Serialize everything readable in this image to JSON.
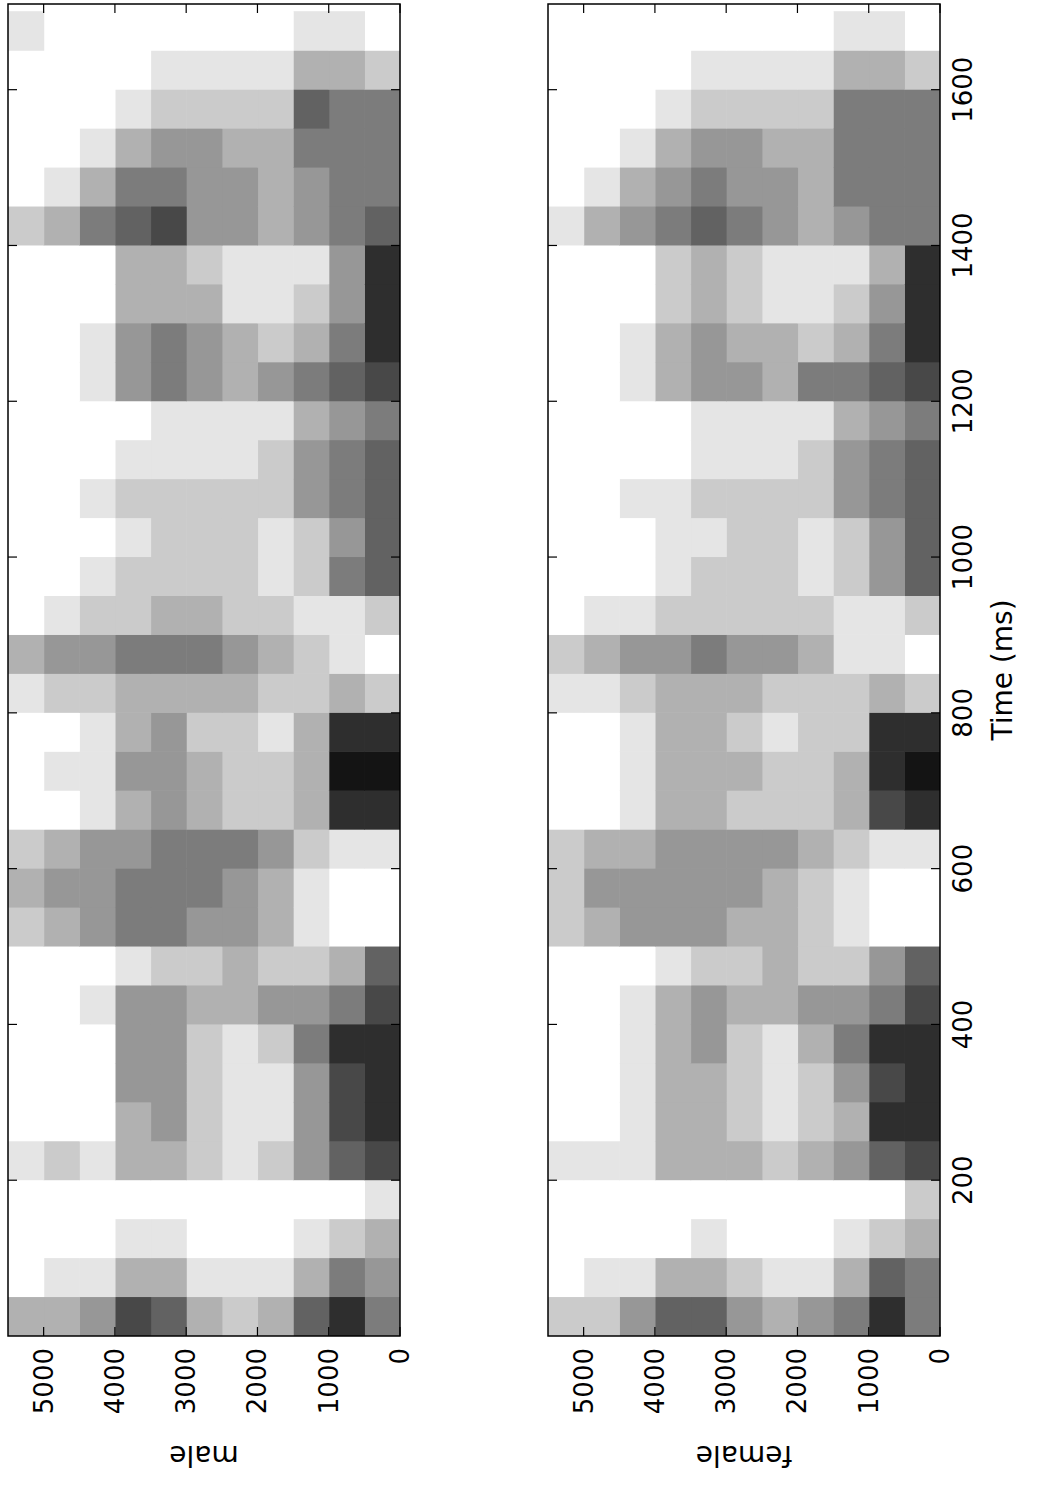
{
  "chart_data": [
    {
      "type": "heatmap",
      "ylabel": "male",
      "tick_labels": "y",
      "color": "#141414",
      "xlim": [
        0,
        1710
      ],
      "ylim": [
        0,
        5500
      ],
      "xticks": [
        200,
        400,
        600,
        800,
        1000,
        1200,
        1400,
        1600
      ],
      "yticks": [
        0,
        1000,
        2000,
        3000,
        4000,
        5000
      ],
      "color_range": [
        0,
        9
      ],
      "time_bins": [
        0,
        50,
        100,
        150,
        200,
        250,
        300,
        350,
        400,
        450,
        500,
        550,
        600,
        650,
        700,
        750,
        800,
        850,
        900,
        950,
        1000,
        1050,
        1100,
        1150,
        1200,
        1250,
        1300,
        1350,
        1400,
        1450,
        1500,
        1550,
        1600,
        1650,
        1700
      ],
      "freq_bins": [
        0,
        500,
        1000,
        1500,
        2000,
        2500,
        3000,
        3500,
        4000,
        4500,
        5000,
        5500
      ],
      "cells": [
        [
          5,
          8,
          6,
          3,
          2,
          3,
          6,
          7,
          4,
          3,
          3
        ],
        [
          4,
          5,
          3,
          1,
          1,
          1,
          3,
          3,
          1,
          1,
          0
        ],
        [
          3,
          2,
          1,
          0,
          0,
          0,
          1,
          1,
          0,
          0,
          0
        ],
        [
          1,
          0,
          0,
          0,
          0,
          0,
          0,
          0,
          0,
          0,
          0
        ],
        [
          7,
          6,
          4,
          2,
          1,
          2,
          3,
          3,
          1,
          2,
          1
        ],
        [
          8,
          7,
          4,
          1,
          1,
          2,
          4,
          3,
          0,
          0,
          0
        ],
        [
          8,
          7,
          4,
          1,
          1,
          2,
          4,
          4,
          0,
          0,
          0
        ],
        [
          8,
          8,
          5,
          2,
          1,
          2,
          4,
          4,
          0,
          0,
          0
        ],
        [
          7,
          5,
          4,
          4,
          3,
          3,
          4,
          4,
          1,
          0,
          0
        ],
        [
          6,
          3,
          2,
          2,
          3,
          2,
          2,
          1,
          0,
          0,
          0
        ],
        [
          0,
          0,
          1,
          3,
          4,
          4,
          5,
          5,
          4,
          3,
          2
        ],
        [
          0,
          0,
          1,
          3,
          4,
          5,
          5,
          5,
          4,
          4,
          3
        ],
        [
          1,
          1,
          2,
          4,
          5,
          5,
          5,
          4,
          4,
          3,
          2
        ],
        [
          8,
          8,
          3,
          2,
          2,
          3,
          4,
          3,
          1,
          0,
          0
        ],
        [
          9,
          9,
          3,
          2,
          2,
          3,
          4,
          4,
          1,
          1,
          0
        ],
        [
          8,
          8,
          3,
          1,
          2,
          2,
          4,
          3,
          1,
          0,
          0
        ],
        [
          2,
          3,
          2,
          2,
          3,
          3,
          3,
          3,
          2,
          2,
          1
        ],
        [
          0,
          1,
          2,
          3,
          4,
          5,
          5,
          5,
          4,
          4,
          3
        ],
        [
          2,
          1,
          1,
          2,
          2,
          3,
          3,
          2,
          2,
          1,
          0
        ],
        [
          6,
          5,
          2,
          1,
          2,
          2,
          2,
          2,
          1,
          0,
          0
        ],
        [
          6,
          4,
          2,
          1,
          2,
          2,
          2,
          1,
          0,
          0,
          0
        ],
        [
          6,
          5,
          4,
          2,
          2,
          2,
          2,
          2,
          1,
          0,
          0
        ],
        [
          6,
          5,
          4,
          2,
          1,
          1,
          1,
          1,
          0,
          0,
          0
        ],
        [
          5,
          4,
          3,
          1,
          1,
          1,
          1,
          0,
          0,
          0,
          0
        ],
        [
          7,
          6,
          5,
          4,
          3,
          4,
          5,
          4,
          1,
          0,
          0
        ],
        [
          8,
          5,
          3,
          2,
          3,
          4,
          5,
          4,
          1,
          0,
          0
        ],
        [
          8,
          4,
          2,
          1,
          1,
          3,
          3,
          3,
          0,
          0,
          0
        ],
        [
          8,
          4,
          1,
          1,
          1,
          2,
          3,
          3,
          0,
          0,
          0
        ],
        [
          6,
          5,
          4,
          3,
          4,
          4,
          7,
          6,
          5,
          3,
          2
        ],
        [
          5,
          5,
          4,
          3,
          4,
          4,
          5,
          5,
          3,
          1,
          0
        ],
        [
          5,
          5,
          5,
          3,
          3,
          4,
          4,
          3,
          1,
          0,
          0
        ],
        [
          5,
          5,
          6,
          2,
          2,
          2,
          2,
          1,
          0,
          0,
          0
        ],
        [
          2,
          3,
          3,
          1,
          1,
          1,
          1,
          0,
          0,
          0,
          0
        ],
        [
          0,
          1,
          1,
          0,
          0,
          0,
          0,
          0,
          0,
          0,
          1
        ]
      ]
    },
    {
      "type": "heatmap",
      "ylabel": "female",
      "xlabel": "Time (ms)",
      "color": "#141414",
      "xlim": [
        0,
        1710
      ],
      "ylim": [
        0,
        5500
      ],
      "xticks": [
        200,
        400,
        600,
        800,
        1000,
        1200,
        1400,
        1600
      ],
      "yticks": [
        0,
        1000,
        2000,
        3000,
        4000,
        5000
      ],
      "color_range": [
        0,
        9
      ],
      "time_bins": [
        0,
        50,
        100,
        150,
        200,
        250,
        300,
        350,
        400,
        450,
        500,
        550,
        600,
        650,
        700,
        750,
        800,
        850,
        900,
        950,
        1000,
        1050,
        1100,
        1150,
        1200,
        1250,
        1300,
        1350,
        1400,
        1450,
        1500,
        1550,
        1600,
        1650,
        1700
      ],
      "freq_bins": [
        0,
        500,
        1000,
        1500,
        2000,
        2500,
        3000,
        3500,
        4000,
        4500,
        5000,
        5500
      ],
      "cells": [
        [
          5,
          8,
          5,
          4,
          3,
          4,
          6,
          6,
          4,
          2,
          2
        ],
        [
          5,
          6,
          3,
          1,
          1,
          2,
          3,
          3,
          1,
          1,
          0
        ],
        [
          3,
          2,
          1,
          0,
          0,
          0,
          1,
          0,
          0,
          0,
          0
        ],
        [
          2,
          0,
          0,
          0,
          0,
          0,
          0,
          0,
          0,
          0,
          0
        ],
        [
          7,
          6,
          4,
          3,
          2,
          3,
          3,
          3,
          1,
          1,
          1
        ],
        [
          8,
          8,
          3,
          2,
          1,
          2,
          3,
          3,
          1,
          0,
          0
        ],
        [
          8,
          7,
          4,
          2,
          1,
          2,
          3,
          3,
          1,
          0,
          0
        ],
        [
          8,
          8,
          5,
          3,
          1,
          2,
          4,
          3,
          1,
          0,
          0
        ],
        [
          7,
          5,
          4,
          4,
          3,
          3,
          4,
          3,
          1,
          0,
          0
        ],
        [
          6,
          4,
          2,
          2,
          3,
          2,
          2,
          1,
          0,
          0,
          0
        ],
        [
          0,
          0,
          1,
          2,
          3,
          3,
          4,
          4,
          4,
          3,
          2
        ],
        [
          0,
          0,
          1,
          2,
          3,
          4,
          4,
          4,
          4,
          4,
          2
        ],
        [
          1,
          1,
          2,
          3,
          4,
          4,
          4,
          4,
          3,
          3,
          2
        ],
        [
          8,
          7,
          3,
          2,
          2,
          2,
          3,
          3,
          1,
          0,
          0
        ],
        [
          9,
          8,
          3,
          2,
          2,
          3,
          3,
          3,
          1,
          0,
          0
        ],
        [
          8,
          8,
          2,
          2,
          1,
          2,
          3,
          3,
          1,
          0,
          0
        ],
        [
          2,
          3,
          2,
          2,
          2,
          3,
          3,
          3,
          2,
          1,
          1
        ],
        [
          0,
          1,
          1,
          3,
          4,
          4,
          5,
          4,
          4,
          3,
          2
        ],
        [
          2,
          1,
          1,
          2,
          2,
          2,
          2,
          2,
          1,
          1,
          0
        ],
        [
          6,
          4,
          2,
          1,
          2,
          2,
          2,
          1,
          0,
          0,
          0
        ],
        [
          6,
          4,
          2,
          1,
          2,
          2,
          1,
          1,
          0,
          0,
          0
        ],
        [
          6,
          5,
          4,
          2,
          2,
          2,
          2,
          1,
          1,
          0,
          0
        ],
        [
          6,
          5,
          4,
          2,
          1,
          1,
          1,
          0,
          0,
          0,
          0
        ],
        [
          5,
          4,
          3,
          1,
          1,
          1,
          1,
          0,
          0,
          0,
          0
        ],
        [
          7,
          6,
          5,
          5,
          3,
          4,
          4,
          3,
          1,
          0,
          0
        ],
        [
          8,
          5,
          3,
          2,
          3,
          3,
          4,
          3,
          1,
          0,
          0
        ],
        [
          8,
          4,
          2,
          1,
          1,
          2,
          3,
          2,
          0,
          0,
          0
        ],
        [
          8,
          3,
          1,
          1,
          1,
          2,
          3,
          2,
          0,
          0,
          0
        ],
        [
          5,
          5,
          4,
          3,
          4,
          5,
          6,
          5,
          4,
          3,
          1
        ],
        [
          5,
          5,
          5,
          3,
          4,
          4,
          5,
          4,
          3,
          1,
          0
        ],
        [
          5,
          5,
          5,
          3,
          3,
          4,
          4,
          3,
          1,
          0,
          0
        ],
        [
          5,
          5,
          5,
          2,
          2,
          2,
          2,
          1,
          0,
          0,
          0
        ],
        [
          2,
          3,
          3,
          1,
          1,
          1,
          1,
          0,
          0,
          0,
          0
        ],
        [
          0,
          1,
          1,
          0,
          0,
          0,
          0,
          0,
          0,
          0,
          0
        ]
      ]
    }
  ]
}
